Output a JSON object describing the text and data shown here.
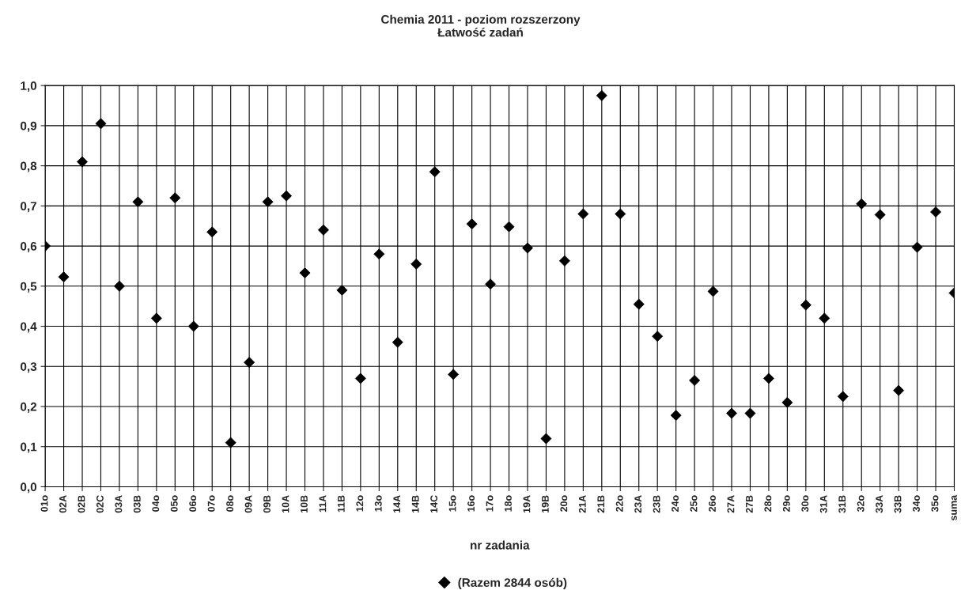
{
  "chart_data": {
    "type": "scatter",
    "title": "Chemia 2011 - poziom rozszerzony\nŁatwość zadań",
    "xlabel": "nr zadania",
    "categories": [
      "01o",
      "02A",
      "02B",
      "02C",
      "03A",
      "03B",
      "04o",
      "05o",
      "06o",
      "07o",
      "08o",
      "09A",
      "09B",
      "10A",
      "10B",
      "11A",
      "11B",
      "12o",
      "13o",
      "14A",
      "14B",
      "14C",
      "15o",
      "16o",
      "17o",
      "18o",
      "19A",
      "19B",
      "20o",
      "21A",
      "21B",
      "22o",
      "23A",
      "23B",
      "24o",
      "25o",
      "26o",
      "27A",
      "27B",
      "28o",
      "29o",
      "30o",
      "31A",
      "31B",
      "32o",
      "33A",
      "33B",
      "34o",
      "35o",
      "suma"
    ],
    "series": [
      {
        "name": "(Razem 2844 osób)",
        "color": "#000000",
        "values": [
          0.6,
          0.523,
          0.81,
          0.905,
          0.5,
          0.71,
          0.42,
          0.72,
          0.4,
          0.635,
          0.11,
          0.31,
          0.71,
          0.725,
          0.533,
          0.64,
          0.49,
          0.27,
          0.58,
          0.36,
          0.555,
          0.785,
          0.28,
          0.655,
          0.505,
          0.648,
          0.595,
          0.12,
          0.563,
          0.68,
          0.975,
          0.68,
          0.455,
          0.375,
          0.178,
          0.265,
          0.487,
          0.183,
          0.183,
          0.27,
          0.21,
          0.453,
          0.42,
          0.225,
          0.705,
          0.678,
          0.24,
          0.597,
          0.685,
          0.483
        ]
      }
    ],
    "ylim": [
      0,
      1
    ],
    "yticks": [
      {
        "value": 0,
        "label": "0,0"
      },
      {
        "value": 0.1,
        "label": "0,1"
      },
      {
        "value": 0.2,
        "label": "0,2"
      },
      {
        "value": 0.3,
        "label": "0,3"
      },
      {
        "value": 0.4,
        "label": "0,4"
      },
      {
        "value": 0.5,
        "label": "0,5"
      },
      {
        "value": 0.6,
        "label": "0,6"
      },
      {
        "value": 0.7,
        "label": "0,7"
      },
      {
        "value": 0.8,
        "label": "0,8"
      },
      {
        "value": 0.9,
        "label": "0,9"
      },
      {
        "value": 1,
        "label": "1,0"
      }
    ],
    "grid": true,
    "legend": "bottom",
    "marker": "diamond"
  }
}
